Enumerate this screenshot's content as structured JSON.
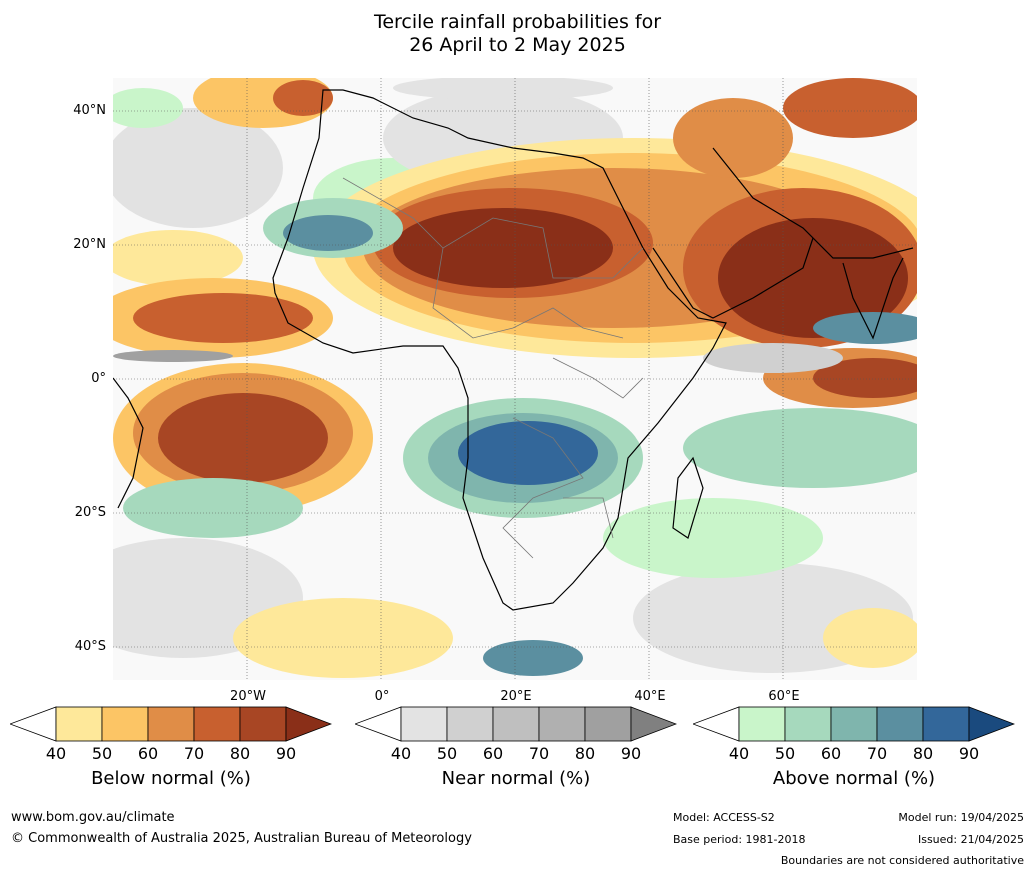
{
  "title": {
    "line1": "Tercile rainfall probabilities for",
    "line2": "26 April to 2 May 2025"
  },
  "axes": {
    "lat_labels": [
      "40°N",
      "20°N",
      "0°",
      "20°S",
      "40°S"
    ],
    "lon_labels": [
      "20°W",
      "0°",
      "20°E",
      "40°E",
      "60°E"
    ]
  },
  "colorbars": [
    {
      "label": "Below normal (%)",
      "ticks": [
        "40",
        "50",
        "60",
        "70",
        "80",
        "90"
      ],
      "colors": [
        "#ffffff",
        "#fee89a",
        "#fcc565",
        "#e08d47",
        "#c8602f",
        "#a84624",
        "#8a2f18"
      ]
    },
    {
      "label": "Near normal (%)",
      "ticks": [
        "40",
        "50",
        "60",
        "70",
        "80",
        "90"
      ],
      "colors": [
        "#ffffff",
        "#e3e3e3",
        "#d0d0d0",
        "#bfbfbf",
        "#b0b0b0",
        "#a0a0a0",
        "#808080"
      ]
    },
    {
      "label": "Above normal (%)",
      "ticks": [
        "40",
        "50",
        "60",
        "70",
        "80",
        "90"
      ],
      "colors": [
        "#ffffff",
        "#c9f5ca",
        "#a6d9bd",
        "#7fb5ad",
        "#5b8fa0",
        "#33679a",
        "#1a4a7e"
      ]
    }
  ],
  "footer": {
    "url": "www.bom.gov.au/climate",
    "copyright": "© Commonwealth of Australia 2025, Australian Bureau of Meteorology",
    "model": "Model: ACCESS-S2",
    "base_period": "Base period: 1981-2018",
    "model_run": "Model run: 19/04/2025",
    "issued": "Issued: 21/04/2025",
    "disclaimer": "Boundaries are not considered authoritative"
  }
}
